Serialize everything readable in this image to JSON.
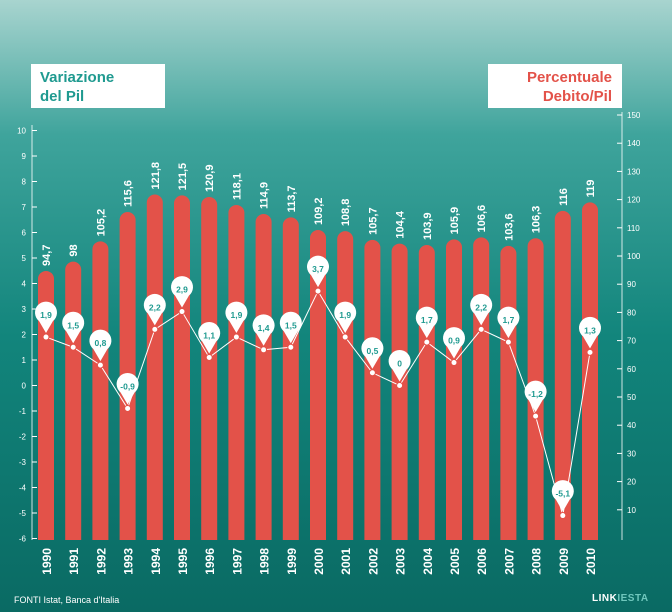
{
  "left_box": {
    "line1": "Variazione",
    "line2": "del Pil"
  },
  "right_box": {
    "line1": "Percentuale",
    "line2": "Debito/Pil"
  },
  "source": "FONTI Istat, Banca d'Italia",
  "brand": {
    "part1": "LINK",
    "part2": "IESTA"
  },
  "colors": {
    "bar": "#e35249",
    "line": "#ffffff",
    "pin_text": "#1f9a90",
    "tick_text": "#ffffff"
  },
  "chart_data": {
    "type": "bar+line",
    "categories": [
      "1990",
      "1991",
      "1992",
      "1993",
      "1994",
      "1995",
      "1996",
      "1997",
      "1998",
      "1999",
      "2000",
      "2001",
      "2002",
      "2003",
      "2004",
      "2005",
      "2006",
      "2007",
      "2008",
      "2009",
      "2010"
    ],
    "series": [
      {
        "name": "Percentuale Debito/Pil",
        "type": "bar",
        "axis": "right",
        "values": [
          94.7,
          98,
          105.2,
          115.6,
          121.8,
          121.5,
          120.9,
          118.1,
          114.9,
          113.7,
          109.2,
          108.8,
          105.7,
          104.4,
          103.9,
          105.9,
          106.6,
          103.6,
          106.3,
          116,
          119
        ],
        "labels": [
          "94,7",
          "98",
          "105,2",
          "115,6",
          "121,8",
          "121,5",
          "120,9",
          "118,1",
          "114,9",
          "113,7",
          "109,2",
          "108,8",
          "105,7",
          "104,4",
          "103,9",
          "105,9",
          "106,6",
          "103,6",
          "106,3",
          "116",
          "119"
        ]
      },
      {
        "name": "Variazione del Pil",
        "type": "line",
        "axis": "left",
        "values": [
          1.9,
          1.5,
          0.8,
          -0.9,
          2.2,
          2.9,
          1.1,
          1.9,
          1.4,
          1.5,
          3.7,
          1.9,
          0.5,
          0,
          1.7,
          0.9,
          2.2,
          1.7,
          -1.2,
          -5.1,
          1.3
        ],
        "labels": [
          "1,9",
          "1,5",
          "0,8",
          "-0,9",
          "2,2",
          "2,9",
          "1,1",
          "1,9",
          "1,4",
          "1,5",
          "3,7",
          "1,9",
          "0,5",
          "0",
          "1,7",
          "0,9",
          "2,2",
          "1,7",
          "-1,2",
          "-5,1",
          "1,3"
        ]
      }
    ],
    "left_axis": {
      "ylim": [
        -6,
        10
      ],
      "ticks": [
        "-6",
        "-5",
        "-4",
        "-3",
        "-2",
        "-1",
        "0",
        "1",
        "2",
        "3",
        "4",
        "5",
        "6",
        "7",
        "8",
        "9",
        "10"
      ]
    },
    "right_axis": {
      "ylim": [
        0,
        150
      ],
      "ticks": [
        "10",
        "20",
        "30",
        "40",
        "50",
        "60",
        "70",
        "80",
        "90",
        "100",
        "110",
        "120",
        "130",
        "140",
        "150"
      ]
    }
  }
}
